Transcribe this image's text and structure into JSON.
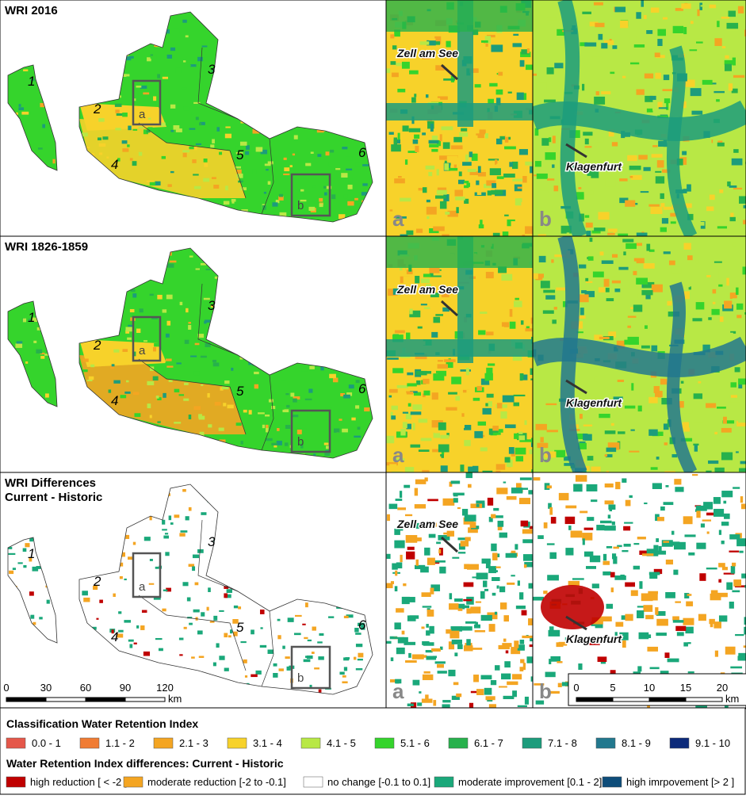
{
  "panels": [
    {
      "title": [
        "WRI 2016"
      ],
      "regions": [
        "1",
        "2",
        "3",
        "4",
        "5",
        "6"
      ],
      "boxes": [
        "a",
        "b"
      ],
      "insets": [
        {
          "label": "a",
          "place": "Zell am See"
        },
        {
          "label": "b",
          "place": "Klagenfurt"
        }
      ]
    },
    {
      "title": [
        "WRI 1826-1859"
      ],
      "regions": [
        "1",
        "2",
        "3",
        "4",
        "5",
        "6"
      ],
      "boxes": [
        "a",
        "b"
      ],
      "insets": [
        {
          "label": "a",
          "place": "Zell am See"
        },
        {
          "label": "b",
          "place": "Klagenfurt"
        }
      ]
    },
    {
      "title": [
        "WRI Differences",
        "Current - Historic"
      ],
      "regions": [
        "1",
        "2",
        "3",
        "4",
        "5",
        "6"
      ],
      "boxes": [
        "a",
        "b"
      ],
      "insets": [
        {
          "label": "a",
          "place": "Zell am See"
        },
        {
          "label": "b",
          "place": "Klagenfurt"
        }
      ]
    }
  ],
  "scale_bar_main": {
    "ticks": [
      "0",
      "30",
      "60",
      "90",
      "120"
    ],
    "unit": "km"
  },
  "scale_bar_inset": {
    "ticks": [
      "0",
      "5",
      "10",
      "15",
      "20"
    ],
    "unit": "km"
  },
  "legend": {
    "title": "Classification Water Retention Index",
    "classes": [
      {
        "label": "0.0 - 1",
        "color": "#e5574a"
      },
      {
        "label": "1.1 - 2",
        "color": "#f07c33"
      },
      {
        "label": "2.1 - 3",
        "color": "#f4a522"
      },
      {
        "label": "3.1 - 4",
        "color": "#f7d22a"
      },
      {
        "label": "4.1 - 5",
        "color": "#b8e845"
      },
      {
        "label": "5.1 - 6",
        "color": "#35d42c"
      },
      {
        "label": "6.1 - 7",
        "color": "#27b14c"
      },
      {
        "label": "7.1 - 8",
        "color": "#1c9c7c"
      },
      {
        "label": "8.1 - 9",
        "color": "#22788e"
      },
      {
        "label": "9.1 - 10",
        "color": "#0c2a7a"
      }
    ],
    "diff_title": "Water Retention Index differences: Current - Historic",
    "diff_classes": [
      {
        "label": "high reduction [ < -2 ]",
        "color": "#c00000"
      },
      {
        "label": "moderate reduction [-2 to -0.1]",
        "color": "#f4a522"
      },
      {
        "label": "no change [-0.1 to 0.1]",
        "color": "#ffffff"
      },
      {
        "label": "moderate improvement [0.1 - 2]",
        "color": "#1aa87a"
      },
      {
        "label": "high imrpovement [> 2 ]",
        "color": "#0e4d7a"
      }
    ]
  }
}
